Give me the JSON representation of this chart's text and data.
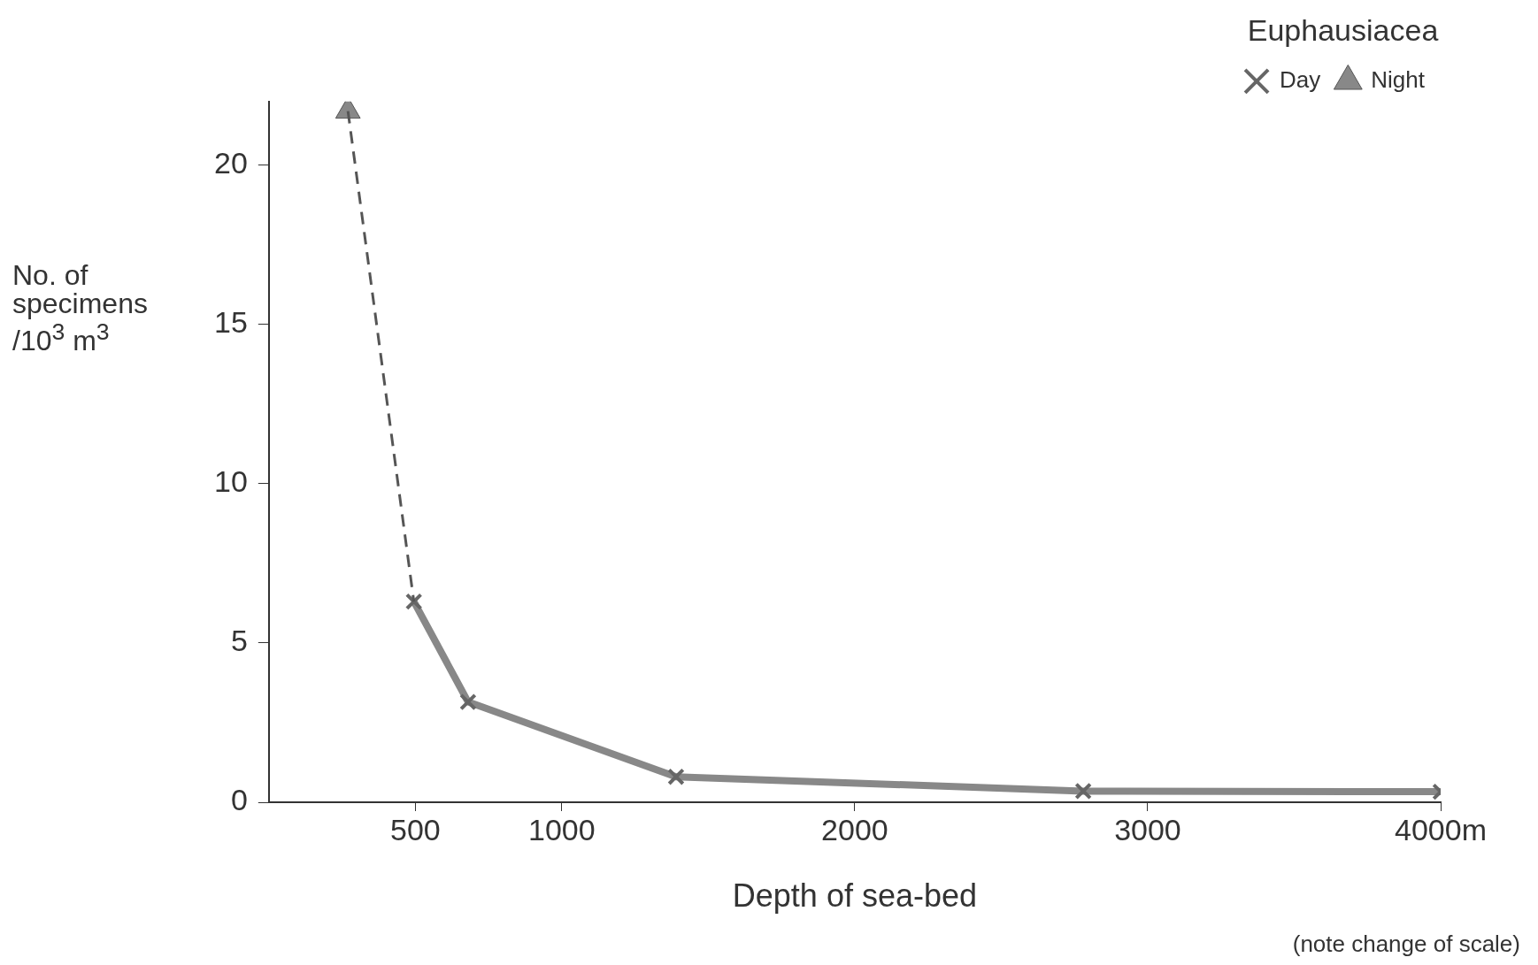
{
  "chart_data": {
    "type": "line",
    "xlabel": "Depth of sea-bed",
    "ylabel": "No. of specimens /10$^{3}$ m$^{3}$",
    "legend_title": "Euphausiacea",
    "legend": "top right",
    "annotations": [
      "(note change of scale)"
    ],
    "xlim": [
      0,
      4000
    ],
    "xticks": [
      500,
      1000,
      2000,
      3000,
      {
        "value": 4000,
        "label": "4000m"
      }
    ],
    "ylim": [
      0,
      22
    ],
    "yticks": [
      0,
      5,
      10,
      15,
      20
    ],
    "grid": false,
    "series": [
      {
        "type": "line",
        "color": "#555555",
        "line_style": "dashed",
        "x": [
          270,
          495
        ],
        "values": [
          21.7,
          6.3
        ]
      },
      {
        "name": "Day",
        "type": "line",
        "color": "#888888",
        "marker": "cross",
        "x": [
          495,
          680,
          1390,
          2780,
          4000
        ],
        "values": [
          6.3,
          3.15,
          0.8,
          0.35,
          0.33
        ]
      },
      {
        "name": "Night",
        "type": "scatter",
        "color": "#888888",
        "marker": "triangle",
        "x": [
          270
        ],
        "values": [
          21.7
        ]
      }
    ]
  }
}
